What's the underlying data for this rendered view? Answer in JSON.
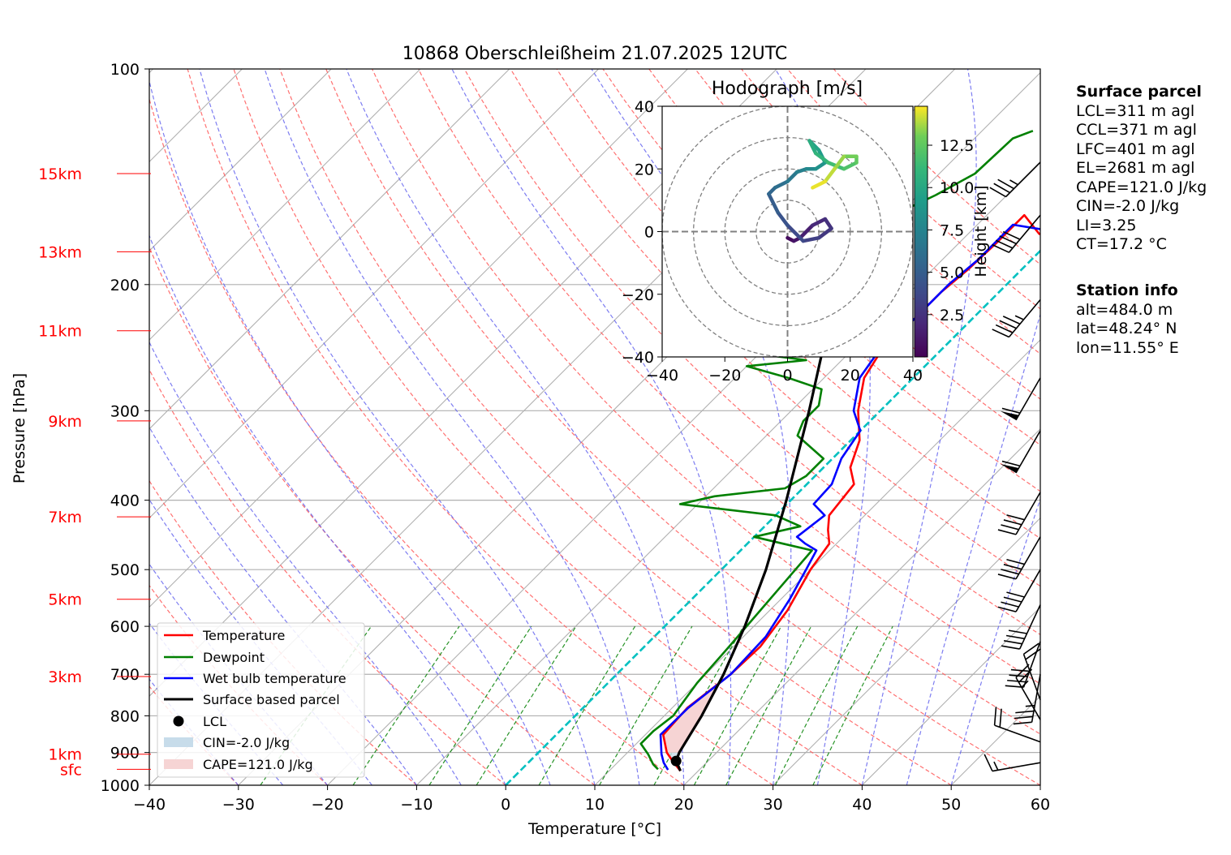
{
  "title": "10868 Oberschleißheim 21.07.2025 12UTC",
  "chart_data": {
    "type": "skew-t log-p sounding",
    "xlabel": "Temperature [°C]",
    "ylabel": "Pressure [hPa]",
    "xlim": [
      -40,
      60
    ],
    "ylim": [
      1000,
      100
    ],
    "x_ticks": [
      "−40",
      "−30",
      "−20",
      "−10",
      "0",
      "10",
      "20",
      "30",
      "40",
      "50",
      "60"
    ],
    "x_tick_values": [
      -40,
      -30,
      -20,
      -10,
      0,
      10,
      20,
      30,
      40,
      50,
      60
    ],
    "pressure_ticks": [
      100,
      200,
      300,
      400,
      500,
      600,
      700,
      800,
      900,
      1000
    ],
    "height_labels": [
      {
        "label": "15km",
        "p": 140
      },
      {
        "label": "13km",
        "p": 180
      },
      {
        "label": "11km",
        "p": 232
      },
      {
        "label": "9km",
        "p": 310
      },
      {
        "label": "7km",
        "p": 422
      },
      {
        "label": "5km",
        "p": 550
      },
      {
        "label": "3km",
        "p": 705
      },
      {
        "label": "1km",
        "p": 905
      },
      {
        "label": "sfc",
        "p": 950
      }
    ],
    "grid": true,
    "series": [
      {
        "name": "Temperature",
        "color": "#ff0000",
        "points": [
          [
            18,
            955
          ],
          [
            16,
            925
          ],
          [
            14.4,
            900
          ],
          [
            12,
            850
          ],
          [
            11.7,
            780
          ],
          [
            12.8,
            700
          ],
          [
            13,
            640
          ],
          [
            12,
            570
          ],
          [
            10,
            500
          ],
          [
            9.2,
            460
          ],
          [
            7.5,
            440
          ],
          [
            6,
            420
          ],
          [
            5.3,
            380
          ],
          [
            3,
            360
          ],
          [
            1,
            330
          ],
          [
            -2.5,
            300
          ],
          [
            -5.5,
            270
          ],
          [
            -6.5,
            250
          ],
          [
            -6.5,
            230
          ],
          [
            -6.5,
            205
          ],
          [
            -6,
            190
          ],
          [
            -5.8,
            175
          ],
          [
            -5.8,
            160
          ],
          [
            -2,
            170
          ],
          [
            0,
            160
          ],
          [
            1.2,
            150
          ],
          [
            3,
            145
          ],
          [
            4.5,
            138
          ],
          [
            5.5,
            128
          ],
          [
            7,
            125
          ],
          [
            8.5,
            121
          ]
        ]
      },
      {
        "name": "Dewpoint",
        "color": "#008000",
        "points": [
          [
            15.3,
            950
          ],
          [
            14.2,
            935
          ],
          [
            12.5,
            905
          ],
          [
            10.5,
            875
          ],
          [
            10.5,
            840
          ],
          [
            11,
            800
          ],
          [
            10,
            720
          ],
          [
            9.5,
            640
          ],
          [
            8.5,
            520
          ],
          [
            8,
            470
          ],
          [
            4,
            460
          ],
          [
            0,
            450
          ],
          [
            4,
            435
          ],
          [
            0,
            420
          ],
          [
            -12,
            405
          ],
          [
            -9,
            395
          ],
          [
            -2,
            385
          ],
          [
            -1,
            370
          ],
          [
            -1,
            350
          ],
          [
            -6.5,
            325
          ],
          [
            -7.5,
            310
          ],
          [
            -7.5,
            295
          ],
          [
            -9,
            280
          ],
          [
            -14,
            270
          ],
          [
            -20,
            260
          ],
          [
            -14,
            255
          ],
          [
            -20,
            250
          ],
          [
            -21,
            240
          ],
          [
            -21.5,
            230
          ],
          [
            -22,
            215
          ],
          [
            -22,
            200
          ],
          [
            -23,
            185
          ],
          [
            -24,
            175
          ],
          [
            -22,
            172
          ],
          [
            -21,
            165
          ],
          [
            -20,
            158
          ],
          [
            -18,
            150
          ],
          [
            -16,
            140
          ],
          [
            -15.7,
            125
          ],
          [
            -14.3,
            122
          ]
        ]
      },
      {
        "name": "Wet bulb temperature",
        "color": "#0000ff",
        "points": [
          [
            16.5,
            952
          ],
          [
            15.2,
            930
          ],
          [
            14,
            905
          ],
          [
            11.7,
            850
          ],
          [
            11.8,
            780
          ],
          [
            12.8,
            700
          ],
          [
            12.5,
            620
          ],
          [
            11,
            550
          ],
          [
            9.5,
            500
          ],
          [
            8.5,
            470
          ],
          [
            6.5,
            460
          ],
          [
            4.8,
            450
          ],
          [
            5.5,
            420
          ],
          [
            3,
            405
          ],
          [
            2.8,
            380
          ],
          [
            1,
            350
          ],
          [
            0,
            320
          ],
          [
            -3,
            300
          ],
          [
            -6,
            270
          ],
          [
            -6.8,
            250
          ],
          [
            -6.5,
            225
          ],
          [
            -6.5,
            200
          ],
          [
            -6,
            185
          ],
          [
            -6,
            165
          ],
          [
            -1.5,
            168
          ],
          [
            0.2,
            158
          ],
          [
            2,
            148
          ],
          [
            3.5,
            140
          ],
          [
            4.5,
            130
          ],
          [
            6.5,
            126
          ],
          [
            8,
            122
          ]
        ]
      },
      {
        "name": "Surface based parcel",
        "color": "#000000",
        "points": [
          [
            18,
            955
          ],
          [
            16.4,
            925
          ],
          [
            15.8,
            900
          ],
          [
            14.2,
            800
          ],
          [
            12,
            700
          ],
          [
            9,
            600
          ],
          [
            5,
            500
          ],
          [
            -0.5,
            400
          ],
          [
            -8,
            300
          ],
          [
            -19,
            200
          ],
          [
            -32,
            120
          ]
        ]
      }
    ],
    "lcl": {
      "name": "LCL",
      "t": 16.4,
      "p": 925
    },
    "cin_label": "CIN=-2.0 J/kg",
    "cape_label": "CAPE=121.0 J/kg",
    "wind_barbs": [
      {
        "p": 930,
        "spd_kt": 15,
        "dir_deg": 260
      },
      {
        "p": 870,
        "spd_kt": 20,
        "dir_deg": 290
      },
      {
        "p": 810,
        "spd_kt": 25,
        "dir_deg": 330
      },
      {
        "p": 760,
        "spd_kt": 20,
        "dir_deg": 340
      },
      {
        "p": 700,
        "spd_kt": 35,
        "dir_deg": 190
      },
      {
        "p": 630,
        "spd_kt": 40,
        "dir_deg": 200
      },
      {
        "p": 560,
        "spd_kt": 40,
        "dir_deg": 205
      },
      {
        "p": 500,
        "spd_kt": 40,
        "dir_deg": 210
      },
      {
        "p": 450,
        "spd_kt": 40,
        "dir_deg": 210
      },
      {
        "p": 390,
        "spd_kt": 40,
        "dir_deg": 210
      },
      {
        "p": 320,
        "spd_kt": 60,
        "dir_deg": 210
      },
      {
        "p": 270,
        "spd_kt": 60,
        "dir_deg": 210
      },
      {
        "p": 210,
        "spd_kt": 45,
        "dir_deg": 220
      },
      {
        "p": 160,
        "spd_kt": 40,
        "dir_deg": 220
      },
      {
        "p": 135,
        "spd_kt": 35,
        "dir_deg": 225
      }
    ],
    "hodograph": {
      "title": "Hodograph [m/s]",
      "xlim": [
        -40,
        40
      ],
      "ylim": [
        -40,
        40
      ],
      "ticks": [
        -40,
        -20,
        0,
        20,
        40
      ],
      "tick_labels": [
        "−40",
        "−20",
        "0",
        "20",
        "40"
      ],
      "colorbar_label": "Height [km]",
      "colorbar_ticks": [
        2.5,
        5.0,
        7.5,
        10.0,
        12.5
      ],
      "colorbar_tick_labels": [
        "2.5",
        "5.0",
        "7.5",
        "10.0",
        "12.5"
      ],
      "colorbar_range": [
        0,
        14.8
      ],
      "path": [
        [
          0,
          -2,
          0.3
        ],
        [
          2,
          -3,
          0.8
        ],
        [
          4,
          -2,
          1.2
        ],
        [
          8,
          2,
          1.8
        ],
        [
          12,
          4,
          2.2
        ],
        [
          14,
          1,
          2.6
        ],
        [
          10,
          -2,
          3
        ],
        [
          5,
          -3,
          3.5
        ],
        [
          0,
          2,
          4
        ],
        [
          -3,
          6,
          4.6
        ],
        [
          -6,
          12,
          5.3
        ],
        [
          -4,
          14,
          5.8
        ],
        [
          0,
          16,
          6.4
        ],
        [
          3,
          19,
          7
        ],
        [
          6,
          20,
          7.6
        ],
        [
          9,
          20,
          8.2
        ],
        [
          12,
          22,
          8.8
        ],
        [
          10,
          26,
          9.4
        ],
        [
          7,
          29,
          10
        ],
        [
          9,
          25,
          10.6
        ],
        [
          13,
          22,
          11.2
        ],
        [
          18,
          20,
          11.8
        ],
        [
          22,
          22,
          12.3
        ],
        [
          22,
          24,
          12.8
        ],
        [
          18,
          24,
          13.3
        ],
        [
          15,
          20,
          13.8
        ],
        [
          12,
          16,
          14.3
        ],
        [
          8,
          14,
          14.8
        ]
      ]
    }
  },
  "surface_parcel": {
    "heading": "Surface parcel",
    "lines": [
      "LCL=311 m agl",
      "CCL=371 m agl",
      "LFC=401 m agl",
      "EL=2681 m agl",
      "CAPE=121.0 J/kg",
      "CIN=-2.0 J/kg",
      "LI=3.25",
      "CT=17.2 °C"
    ]
  },
  "station_info": {
    "heading": "Station info",
    "lines": [
      "alt=484.0 m",
      "lat=48.24° N",
      "lon=11.55° E"
    ]
  },
  "colors": {
    "temperature": "#ff0000",
    "dewpoint": "#008000",
    "wetbulb": "#0000ff",
    "parcel": "#000000",
    "dry_adiabat": "#ff6060",
    "moist_adiabat": "#6666ee",
    "mixing_ratio": "#008000",
    "isotherm_zero": "#00c0c0",
    "cin_fill": "#c7dcea",
    "cape_fill": "#f6d4d4"
  }
}
